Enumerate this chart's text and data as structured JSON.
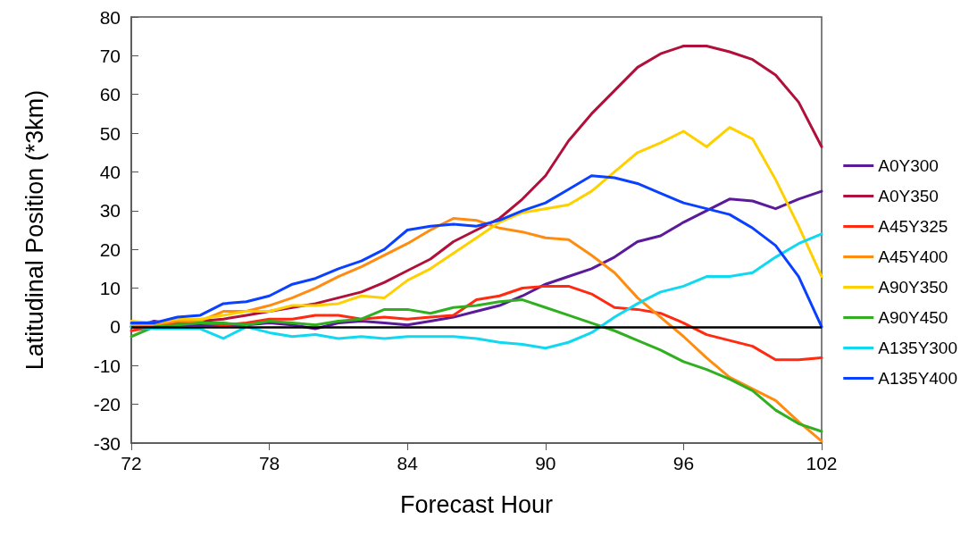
{
  "chart_data": {
    "type": "line",
    "xlabel": "Forecast Hour",
    "ylabel": "Latitudinal Position (*3km)",
    "x": [
      72,
      73,
      74,
      75,
      76,
      77,
      78,
      79,
      80,
      81,
      82,
      83,
      84,
      85,
      86,
      87,
      88,
      89,
      90,
      91,
      92,
      93,
      94,
      95,
      96,
      97,
      98,
      99,
      100,
      101,
      102
    ],
    "xlim": [
      72,
      102
    ],
    "xticks": [
      72,
      78,
      84,
      90,
      96,
      102
    ],
    "ylim": [
      -30,
      80
    ],
    "yticks": [
      -30,
      -20,
      -10,
      0,
      10,
      20,
      30,
      40,
      50,
      60,
      70,
      80
    ],
    "grid": false,
    "legend": "right",
    "marker": "none",
    "line_style": "solid",
    "ref_lines": [
      {
        "axis": "y",
        "value": 0,
        "label": null,
        "color": "#000000"
      }
    ],
    "series": [
      {
        "name": "A0Y300",
        "color": "#5a1a9a",
        "values": [
          0,
          1.5,
          0.5,
          0.5,
          0.5,
          0.5,
          1,
          0.5,
          -0.5,
          1,
          1.5,
          1,
          0.5,
          1.5,
          2.5,
          4,
          5.5,
          8,
          11,
          13,
          15,
          18,
          22,
          23.5,
          27,
          30,
          33,
          32.5,
          30.5,
          33,
          35
        ]
      },
      {
        "name": "A0Y350",
        "color": "#b0103a",
        "values": [
          0,
          0.5,
          1,
          1.5,
          2,
          3,
          4,
          5,
          6,
          7.5,
          9,
          11.5,
          14.5,
          17.5,
          22,
          25,
          28,
          33,
          39,
          48,
          55,
          61,
          67,
          70.5,
          72.5,
          72.5,
          71,
          69,
          65,
          58,
          46.5
        ]
      },
      {
        "name": "A45Y325",
        "color": "#ff2a10",
        "values": [
          -1,
          0,
          1,
          1,
          0.5,
          1,
          2,
          2,
          3,
          3,
          2,
          2.5,
          2,
          2.5,
          3,
          7,
          8,
          10,
          10.5,
          10.5,
          8.5,
          5,
          4.5,
          3.5,
          1,
          -2,
          -3.5,
          -5,
          -8.5,
          -8.5,
          -8
        ]
      },
      {
        "name": "A45Y400",
        "color": "#ff8c10",
        "values": [
          0.5,
          0.5,
          1.5,
          1.5,
          4,
          4,
          5.5,
          7.5,
          10,
          13,
          15.5,
          18.5,
          21.5,
          25,
          28,
          27.5,
          25.5,
          24.5,
          23,
          22.5,
          18.5,
          14,
          7.5,
          2.5,
          -2.5,
          -8,
          -13,
          -16,
          -19,
          -24.5,
          -29.5
        ]
      },
      {
        "name": "A90Y350",
        "color": "#ffd000",
        "values": [
          1.5,
          1,
          2,
          2,
          3,
          4,
          4,
          5.5,
          5.5,
          6,
          8,
          7.5,
          12,
          15,
          19,
          23,
          27,
          29.5,
          30.5,
          31.5,
          35,
          40,
          45,
          47.5,
          50.5,
          46.5,
          51.5,
          48.5,
          38,
          26,
          13
        ]
      },
      {
        "name": "A90Y450",
        "color": "#30b020",
        "values": [
          -2.5,
          0,
          0.5,
          1,
          1,
          0.5,
          1.5,
          1,
          0.5,
          1.5,
          2,
          4.5,
          4.5,
          3.5,
          5,
          5.5,
          6.5,
          7,
          5,
          3,
          1,
          -1,
          -3.5,
          -6,
          -9,
          -11,
          -13.5,
          -16.5,
          -21.5,
          -25,
          -27
        ]
      },
      {
        "name": "A135Y300",
        "color": "#10d8f0",
        "values": [
          0,
          -0.5,
          -0.5,
          -0.5,
          -3,
          0,
          -1.5,
          -2.5,
          -2,
          -3,
          -2.5,
          -3,
          -2.5,
          -2.5,
          -2.5,
          -3,
          -4,
          -4.5,
          -5.5,
          -4,
          -1.5,
          2.5,
          6,
          9,
          10.5,
          13,
          13,
          14,
          18,
          21.5,
          24
        ]
      },
      {
        "name": "A135Y400",
        "color": "#0a40ff",
        "values": [
          1,
          1,
          2.5,
          3,
          6,
          6.5,
          8,
          11,
          12.5,
          15,
          17,
          20,
          25,
          26,
          26.5,
          26,
          27.5,
          30,
          32,
          35.5,
          39,
          38.5,
          37,
          34.5,
          32,
          30.5,
          29,
          25.5,
          21,
          13,
          0
        ]
      }
    ]
  }
}
